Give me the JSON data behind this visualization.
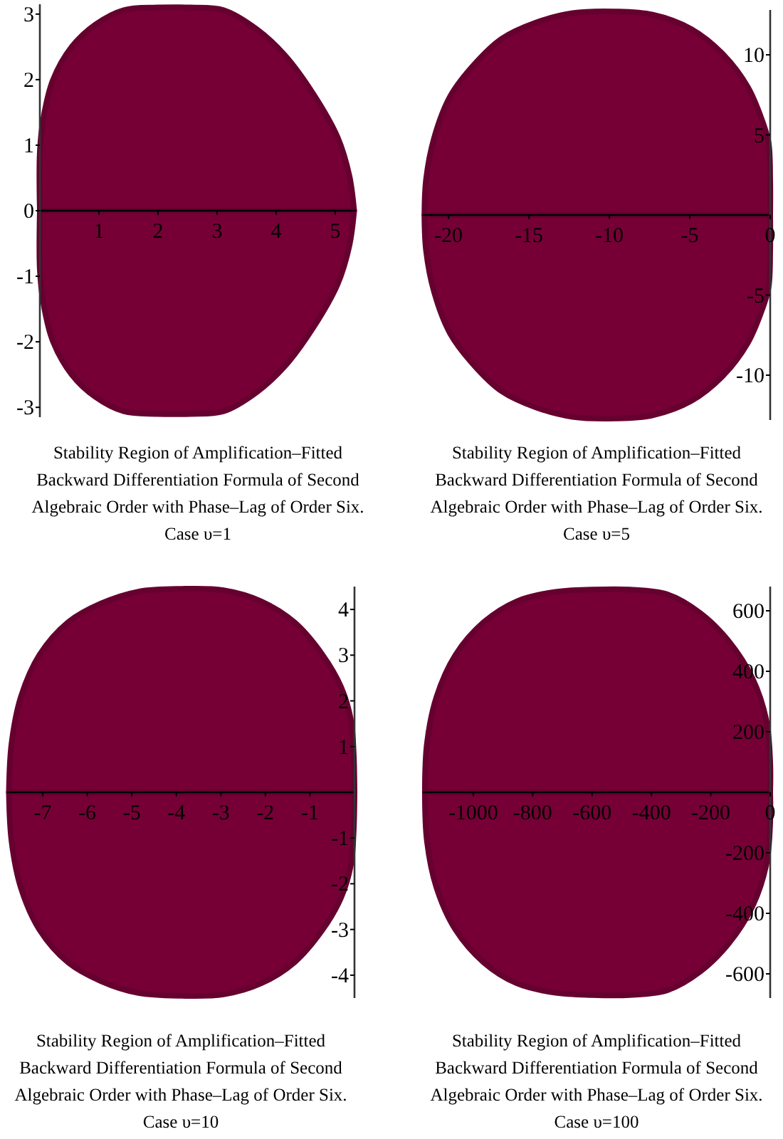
{
  "chart_data": [
    {
      "type": "area",
      "title": "Stability Region of Amplification–Fitted Backward Differentiation Formula of Second Algebraic Order with Phase–Lag of Order Six. Case υ=1",
      "xlim": [
        0,
        5.35
      ],
      "ylim": [
        -3.15,
        3.15
      ],
      "xticks": [
        1,
        2,
        3,
        4,
        5
      ],
      "yticks": [
        -3,
        -2,
        -1,
        0,
        1,
        2,
        3
      ],
      "series": [
        {
          "color": "#760036",
          "x": [
            0,
            0,
            0.06,
            0.22,
            0.54,
            0.94,
            1.42,
            1.98,
            2.55,
            3.11,
            3.67,
            4.15,
            4.63,
            5.04,
            5.24,
            5.32
          ],
          "values": [
            0,
            0.9,
            1.41,
            1.99,
            2.5,
            2.84,
            3.06,
            3.1,
            3.1,
            3.06,
            2.77,
            2.37,
            1.78,
            1.12,
            0.53,
            0
          ]
        },
        {
          "color": "#760036",
          "x": [
            0,
            0,
            0.06,
            0.22,
            0.54,
            0.94,
            1.42,
            1.98,
            2.55,
            3.11,
            3.67,
            4.15,
            4.63,
            5.04,
            5.24,
            5.32
          ],
          "values": [
            0,
            -0.9,
            -1.41,
            -1.99,
            -2.5,
            -2.84,
            -3.06,
            -3.1,
            -3.1,
            -3.06,
            -2.77,
            -2.37,
            -1.78,
            -1.12,
            -0.53,
            0
          ]
        }
      ]
    },
    {
      "type": "area",
      "title": "Stability Region of Amplification–Fitted Backward Differentiation Formula of Second Algebraic Order with Phase–Lag of Order Six. Case υ=5",
      "xlim": [
        -21.6,
        0
      ],
      "ylim": [
        -12.8,
        12.8
      ],
      "xticks": [
        -20,
        -15,
        -10,
        -5,
        0
      ],
      "yticks": [
        -10,
        -5,
        5,
        10
      ],
      "series": [
        {
          "color": "#760036",
          "x": [
            -21.5,
            -21.4,
            -20.9,
            -19.9,
            -18.4,
            -16.7,
            -14.6,
            -12.3,
            -9.6,
            -7.3,
            -4.9,
            -2.9,
            -1.4,
            -0.5,
            -0.1,
            0,
            0
          ],
          "values": [
            0,
            2.2,
            4.8,
            7.4,
            9.4,
            11,
            12,
            12.6,
            12.7,
            12.5,
            11.6,
            10,
            8,
            5.9,
            4.5,
            2.2,
            0
          ]
        },
        {
          "color": "#760036",
          "x": [
            -21.5,
            -21.4,
            -20.9,
            -19.9,
            -18.4,
            -16.7,
            -14.6,
            -12.3,
            -9.6,
            -7.3,
            -4.9,
            -2.9,
            -1.4,
            -0.5,
            -0.1,
            0,
            0
          ],
          "values": [
            0,
            -2.2,
            -4.8,
            -7.4,
            -9.4,
            -11,
            -12,
            -12.6,
            -12.7,
            -12.5,
            -11.6,
            -10,
            -8,
            -5.9,
            -4.5,
            -2.2,
            0
          ]
        }
      ]
    },
    {
      "type": "area",
      "title": "Stability Region of Amplification–Fitted Backward Differentiation Formula of Second Algebraic Order with Phase–Lag of Order Six. Case υ=10",
      "xlim": [
        -7.8,
        0
      ],
      "ylim": [
        -4.5,
        4.5
      ],
      "xticks": [
        -7,
        -6,
        -5,
        -4,
        -3,
        -2,
        -1
      ],
      "yticks": [
        -4,
        -3,
        -2,
        -1,
        1,
        2,
        3,
        4
      ],
      "series": [
        {
          "color": "#760036",
          "x": [
            -7.76,
            -7.7,
            -7.49,
            -7.07,
            -6.43,
            -5.69,
            -4.85,
            -3.89,
            -2.94,
            -2.1,
            -1.35,
            -0.72,
            -0.3,
            -0.08,
            -0.02,
            0
          ],
          "values": [
            0,
            1.07,
            2.09,
            3.01,
            3.72,
            4.13,
            4.39,
            4.45,
            4.42,
            4.18,
            3.72,
            3.01,
            2.3,
            1.58,
            0.87,
            0
          ]
        },
        {
          "color": "#760036",
          "x": [
            -7.76,
            -7.7,
            -7.49,
            -7.07,
            -6.43,
            -5.69,
            -4.85,
            -3.89,
            -2.94,
            -2.1,
            -1.35,
            -0.72,
            -0.3,
            -0.08,
            -0.02,
            0
          ],
          "values": [
            0,
            -1.07,
            -2.09,
            -3.01,
            -3.72,
            -4.13,
            -4.39,
            -4.45,
            -4.42,
            -4.18,
            -3.72,
            -3.01,
            -2.3,
            -1.58,
            -0.87,
            0
          ]
        }
      ]
    },
    {
      "type": "area",
      "title": "Stability Region of Amplification–Fitted Backward Differentiation Formula of Second Algebraic Order with Phase–Lag of Order Six. Case υ=100",
      "xlim": [
        -1170,
        0
      ],
      "ylim": [
        -680,
        680
      ],
      "xticks": [
        -1000,
        -800,
        -600,
        -400,
        -200,
        0
      ],
      "yticks": [
        -600,
        -400,
        -200,
        200,
        400,
        600
      ],
      "series": [
        {
          "color": "#760036",
          "x": [
            -1163,
            -1156,
            -1124,
            -1060,
            -965,
            -854,
            -727,
            -600,
            -473,
            -346,
            -235,
            -140,
            -60,
            -13,
            0,
            0
          ],
          "values": [
            0,
            162,
            315,
            454,
            562,
            631,
            662,
            670,
            670,
            654,
            592,
            500,
            377,
            238,
            100,
            0
          ]
        },
        {
          "color": "#760036",
          "x": [
            -1163,
            -1156,
            -1124,
            -1060,
            -965,
            -854,
            -727,
            -600,
            -473,
            -346,
            -235,
            -140,
            -60,
            -13,
            0,
            0
          ],
          "values": [
            0,
            -162,
            -315,
            -454,
            -562,
            -631,
            -662,
            -670,
            -670,
            -654,
            -592,
            -500,
            -377,
            -238,
            -100,
            0
          ]
        }
      ]
    }
  ]
}
